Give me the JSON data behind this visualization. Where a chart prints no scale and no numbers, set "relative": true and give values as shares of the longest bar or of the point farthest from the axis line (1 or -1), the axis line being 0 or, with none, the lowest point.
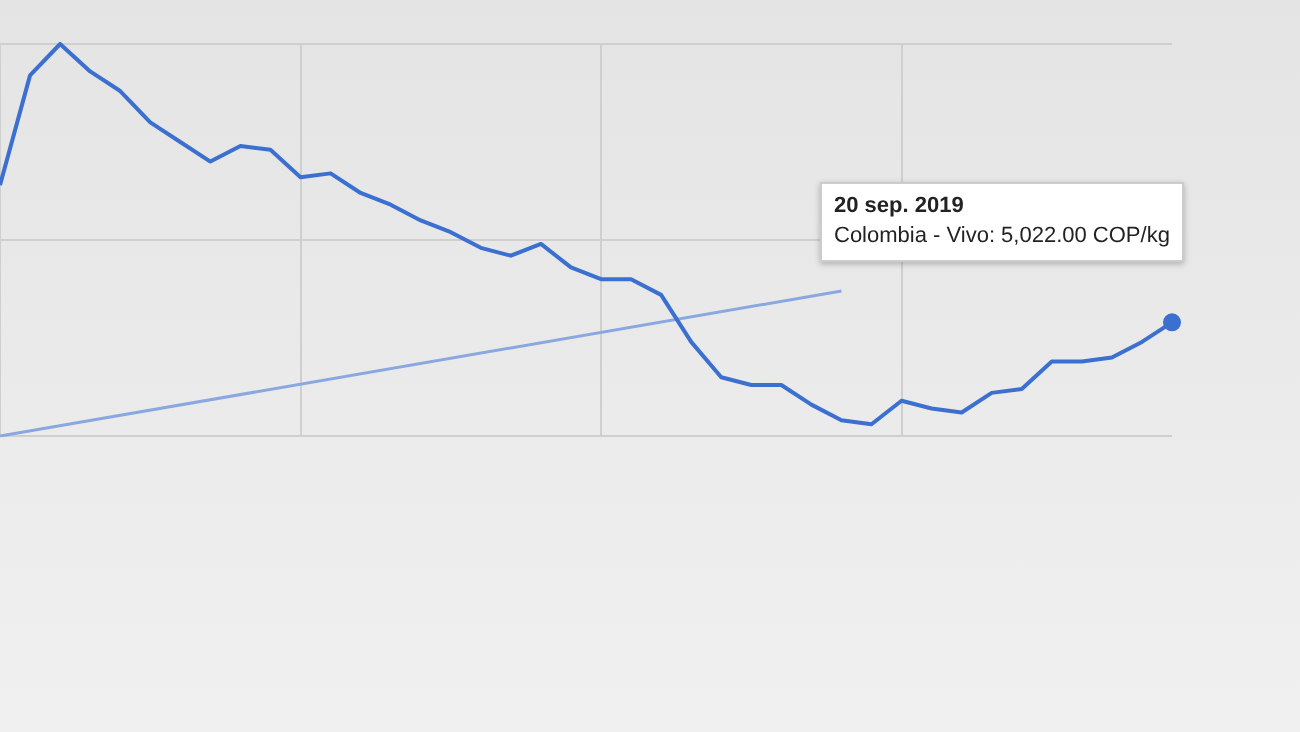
{
  "chart_data": {
    "type": "line",
    "relative": true,
    "grid": true,
    "marker": "none",
    "categories": [
      null,
      null,
      null,
      null,
      null,
      null,
      null,
      null,
      null,
      null,
      null,
      null,
      null,
      null,
      null,
      null,
      null,
      null,
      null,
      null,
      null,
      null,
      null,
      null,
      null,
      null,
      null,
      null,
      null,
      null,
      null,
      null,
      null,
      null,
      null,
      null,
      null,
      null,
      null,
      null
    ],
    "series": [
      {
        "color": "#3b6fd0",
        "values": [
          0.64,
          0.92,
          1.0,
          0.93,
          0.88,
          0.8,
          0.75,
          0.7,
          0.74,
          0.73,
          0.66,
          0.67,
          0.62,
          0.59,
          0.55,
          0.52,
          0.48,
          0.46,
          0.49,
          0.43,
          0.4,
          0.4,
          0.36,
          0.24,
          0.15,
          0.13,
          0.13,
          0.08,
          0.04,
          0.03,
          0.09,
          0.07,
          0.06,
          0.11,
          0.12,
          0.19,
          0.19,
          0.2,
          0.24,
          0.29
        ]
      },
      {
        "color": "#8aa8e0",
        "values": [
          0,
          null,
          null,
          null,
          null,
          null,
          null,
          null,
          null,
          null,
          null,
          null,
          null,
          null,
          null,
          null,
          null,
          null,
          null,
          null,
          null,
          null,
          null,
          null,
          null,
          null,
          null,
          null,
          0.37,
          null,
          null,
          null,
          null,
          null,
          null,
          null,
          null,
          null,
          null,
          null
        ]
      }
    ],
    "annotations": [
      "20 sep. 2019",
      "Colombia - Vivo: 5,022.00 COP/kg"
    ]
  }
}
